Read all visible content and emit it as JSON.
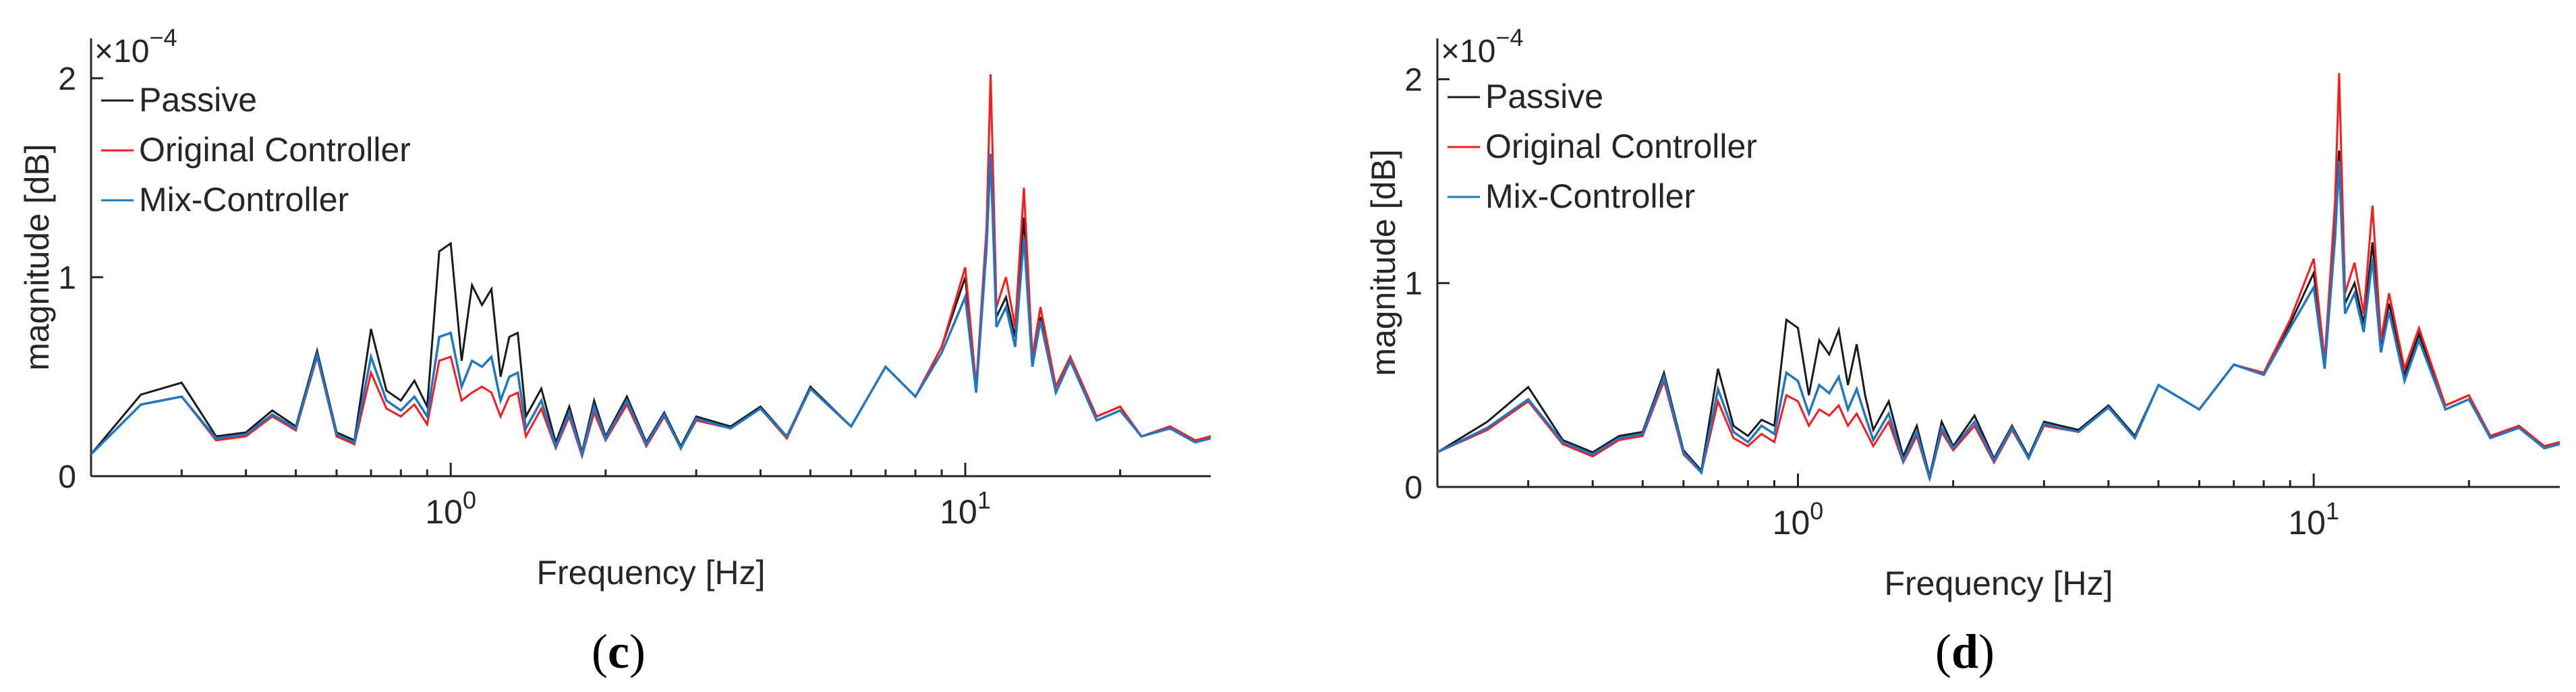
{
  "figure_captions": [
    "(c)",
    "(d)"
  ],
  "colors": {
    "passive": "#1a1a1a",
    "original": "#ff1a1a",
    "mix": "#1f77c4",
    "axis": "#262626"
  },
  "chart_data": [
    {
      "panel": "c",
      "type": "line",
      "title": "",
      "xlabel": "Frequency [Hz]",
      "ylabel": "magnitude [dB]",
      "xscale": "log",
      "xlim": [
        0.2,
        30
      ],
      "ylim": [
        0,
        2.2
      ],
      "y_exponent_label": "×10",
      "y_exponent_power": "−4",
      "xtick_labels": [
        {
          "value": 1,
          "base": "10",
          "exp": "0"
        },
        {
          "value": 10,
          "base": "10",
          "exp": "1"
        }
      ],
      "ytick_labels": [
        {
          "value": 0,
          "label": "0"
        },
        {
          "value": 1,
          "label": "1"
        },
        {
          "value": 2,
          "label": "2"
        }
      ],
      "legend_position": "top-left",
      "series": [
        {
          "name": "Passive",
          "color_key": "passive",
          "x": [
            0.2,
            0.25,
            0.3,
            0.35,
            0.4,
            0.45,
            0.5,
            0.55,
            0.6,
            0.65,
            0.7,
            0.75,
            0.8,
            0.85,
            0.9,
            0.95,
            1.0,
            1.05,
            1.1,
            1.15,
            1.2,
            1.25,
            1.3,
            1.35,
            1.4,
            1.5,
            1.6,
            1.7,
            1.8,
            1.9,
            2.0,
            2.2,
            2.4,
            2.6,
            2.8,
            3.0,
            3.5,
            4.0,
            4.5,
            5.0,
            6.0,
            7.0,
            8.0,
            9.0,
            10.0,
            10.5,
            11.0,
            11.2,
            11.5,
            12.0,
            12.5,
            13.0,
            13.5,
            14.0,
            15.0,
            16.0,
            18.0,
            20.0,
            22.0,
            25.0,
            28.0,
            30.0
          ],
          "y": [
            0.11,
            0.41,
            0.47,
            0.2,
            0.22,
            0.33,
            0.25,
            0.63,
            0.22,
            0.18,
            0.74,
            0.43,
            0.38,
            0.48,
            0.35,
            1.13,
            1.17,
            0.58,
            0.96,
            0.86,
            0.94,
            0.5,
            0.7,
            0.72,
            0.3,
            0.44,
            0.17,
            0.35,
            0.12,
            0.38,
            0.2,
            0.4,
            0.17,
            0.32,
            0.15,
            0.3,
            0.25,
            0.35,
            0.2,
            0.45,
            0.25,
            0.55,
            0.4,
            0.65,
            1.0,
            0.45,
            1.2,
            1.6,
            0.8,
            0.9,
            0.7,
            1.3,
            0.6,
            0.8,
            0.45,
            0.6,
            0.3,
            0.35,
            0.2,
            0.25,
            0.18,
            0.2
          ]
        },
        {
          "name": "Original Controller",
          "color_key": "original",
          "x": [
            0.2,
            0.25,
            0.3,
            0.35,
            0.4,
            0.45,
            0.5,
            0.55,
            0.6,
            0.65,
            0.7,
            0.75,
            0.8,
            0.85,
            0.9,
            0.95,
            1.0,
            1.05,
            1.1,
            1.15,
            1.2,
            1.25,
            1.3,
            1.35,
            1.4,
            1.5,
            1.6,
            1.7,
            1.8,
            1.9,
            2.0,
            2.2,
            2.4,
            2.6,
            2.8,
            3.0,
            3.5,
            4.0,
            4.5,
            5.0,
            6.0,
            7.0,
            8.0,
            9.0,
            10.0,
            10.5,
            11.0,
            11.2,
            11.5,
            12.0,
            12.5,
            13.0,
            13.5,
            14.0,
            15.0,
            16.0,
            18.0,
            20.0,
            22.0,
            25.0,
            28.0,
            30.0
          ],
          "y": [
            0.11,
            0.36,
            0.4,
            0.18,
            0.2,
            0.3,
            0.23,
            0.6,
            0.2,
            0.16,
            0.52,
            0.34,
            0.3,
            0.36,
            0.26,
            0.58,
            0.6,
            0.38,
            0.42,
            0.45,
            0.42,
            0.3,
            0.4,
            0.42,
            0.2,
            0.34,
            0.14,
            0.3,
            0.1,
            0.32,
            0.18,
            0.36,
            0.15,
            0.3,
            0.14,
            0.28,
            0.24,
            0.34,
            0.19,
            0.44,
            0.25,
            0.55,
            0.4,
            0.65,
            1.05,
            0.45,
            1.25,
            2.02,
            0.85,
            1.0,
            0.75,
            1.45,
            0.6,
            0.85,
            0.45,
            0.6,
            0.3,
            0.35,
            0.2,
            0.25,
            0.18,
            0.2
          ]
        },
        {
          "name": "Mix-Controller",
          "color_key": "mix",
          "x": [
            0.2,
            0.25,
            0.3,
            0.35,
            0.4,
            0.45,
            0.5,
            0.55,
            0.6,
            0.65,
            0.7,
            0.75,
            0.8,
            0.85,
            0.9,
            0.95,
            1.0,
            1.05,
            1.1,
            1.15,
            1.2,
            1.25,
            1.3,
            1.35,
            1.4,
            1.5,
            1.6,
            1.7,
            1.8,
            1.9,
            2.0,
            2.2,
            2.4,
            2.6,
            2.8,
            3.0,
            3.5,
            4.0,
            4.5,
            5.0,
            6.0,
            7.0,
            8.0,
            9.0,
            10.0,
            10.5,
            11.0,
            11.2,
            11.5,
            12.0,
            12.5,
            13.0,
            13.5,
            14.0,
            15.0,
            16.0,
            18.0,
            20.0,
            22.0,
            25.0,
            28.0,
            30.0
          ],
          "y": [
            0.11,
            0.36,
            0.4,
            0.19,
            0.21,
            0.31,
            0.24,
            0.61,
            0.21,
            0.17,
            0.6,
            0.38,
            0.33,
            0.4,
            0.3,
            0.7,
            0.72,
            0.45,
            0.58,
            0.55,
            0.6,
            0.38,
            0.5,
            0.52,
            0.24,
            0.38,
            0.15,
            0.32,
            0.11,
            0.35,
            0.19,
            0.38,
            0.16,
            0.31,
            0.14,
            0.29,
            0.24,
            0.34,
            0.2,
            0.44,
            0.25,
            0.55,
            0.4,
            0.62,
            0.9,
            0.42,
            1.15,
            1.62,
            0.75,
            0.85,
            0.65,
            1.2,
            0.55,
            0.78,
            0.42,
            0.58,
            0.28,
            0.33,
            0.2,
            0.24,
            0.17,
            0.19
          ]
        }
      ]
    },
    {
      "panel": "d",
      "type": "line",
      "title": "",
      "xlabel": "Frequency [Hz]",
      "ylabel": "magnitude [dB]",
      "xscale": "log",
      "xlim": [
        0.2,
        30
      ],
      "ylim": [
        0,
        2.2
      ],
      "y_exponent_label": "×10",
      "y_exponent_power": "−4",
      "xtick_labels": [
        {
          "value": 1,
          "base": "10",
          "exp": "0"
        },
        {
          "value": 10,
          "base": "10",
          "exp": "1"
        }
      ],
      "ytick_labels": [
        {
          "value": 0,
          "label": "0"
        },
        {
          "value": 1,
          "label": "1"
        },
        {
          "value": 2,
          "label": "2"
        }
      ],
      "legend_position": "top-left",
      "series": [
        {
          "name": "Passive",
          "color_key": "passive",
          "x": [
            0.2,
            0.25,
            0.3,
            0.35,
            0.4,
            0.45,
            0.5,
            0.55,
            0.6,
            0.65,
            0.7,
            0.75,
            0.8,
            0.85,
            0.9,
            0.95,
            1.0,
            1.05,
            1.1,
            1.15,
            1.2,
            1.25,
            1.3,
            1.35,
            1.4,
            1.5,
            1.6,
            1.7,
            1.8,
            1.9,
            2.0,
            2.2,
            2.4,
            2.6,
            2.8,
            3.0,
            3.5,
            4.0,
            4.5,
            5.0,
            6.0,
            7.0,
            8.0,
            9.0,
            10.0,
            10.5,
            11.0,
            11.2,
            11.5,
            12.0,
            12.5,
            13.0,
            13.5,
            14.0,
            15.0,
            16.0,
            18.0,
            20.0,
            22.0,
            25.0,
            28.0,
            30.0
          ],
          "y": [
            0.17,
            0.32,
            0.49,
            0.23,
            0.17,
            0.25,
            0.27,
            0.56,
            0.18,
            0.08,
            0.58,
            0.3,
            0.25,
            0.33,
            0.3,
            0.82,
            0.78,
            0.45,
            0.72,
            0.65,
            0.77,
            0.5,
            0.7,
            0.45,
            0.28,
            0.42,
            0.15,
            0.3,
            0.05,
            0.32,
            0.2,
            0.35,
            0.14,
            0.3,
            0.15,
            0.32,
            0.28,
            0.4,
            0.25,
            0.5,
            0.38,
            0.6,
            0.55,
            0.8,
            1.05,
            0.6,
            1.3,
            1.65,
            0.9,
            1.0,
            0.8,
            1.2,
            0.7,
            0.9,
            0.55,
            0.75,
            0.4,
            0.45,
            0.25,
            0.3,
            0.2,
            0.22
          ]
        },
        {
          "name": "Original Controller",
          "color_key": "original",
          "x": [
            0.2,
            0.25,
            0.3,
            0.35,
            0.4,
            0.45,
            0.5,
            0.55,
            0.6,
            0.65,
            0.7,
            0.75,
            0.8,
            0.85,
            0.9,
            0.95,
            1.0,
            1.05,
            1.1,
            1.15,
            1.2,
            1.25,
            1.3,
            1.35,
            1.4,
            1.5,
            1.6,
            1.7,
            1.8,
            1.9,
            2.0,
            2.2,
            2.4,
            2.6,
            2.8,
            3.0,
            3.5,
            4.0,
            4.5,
            5.0,
            6.0,
            7.0,
            8.0,
            9.0,
            10.0,
            10.5,
            11.0,
            11.2,
            11.5,
            12.0,
            12.5,
            13.0,
            13.5,
            14.0,
            15.0,
            16.0,
            18.0,
            20.0,
            22.0,
            25.0,
            28.0,
            30.0
          ],
          "y": [
            0.17,
            0.28,
            0.42,
            0.21,
            0.15,
            0.23,
            0.25,
            0.52,
            0.16,
            0.07,
            0.42,
            0.24,
            0.2,
            0.26,
            0.22,
            0.45,
            0.42,
            0.3,
            0.38,
            0.35,
            0.4,
            0.3,
            0.36,
            0.28,
            0.2,
            0.32,
            0.12,
            0.25,
            0.04,
            0.27,
            0.18,
            0.3,
            0.12,
            0.28,
            0.14,
            0.3,
            0.27,
            0.39,
            0.24,
            0.5,
            0.38,
            0.6,
            0.56,
            0.82,
            1.12,
            0.62,
            1.4,
            2.03,
            0.95,
            1.1,
            0.85,
            1.38,
            0.72,
            0.95,
            0.58,
            0.78,
            0.4,
            0.45,
            0.25,
            0.3,
            0.2,
            0.22
          ]
        },
        {
          "name": "Mix-Controller",
          "color_key": "mix",
          "x": [
            0.2,
            0.25,
            0.3,
            0.35,
            0.4,
            0.45,
            0.5,
            0.55,
            0.6,
            0.65,
            0.7,
            0.75,
            0.8,
            0.85,
            0.9,
            0.95,
            1.0,
            1.05,
            1.1,
            1.15,
            1.2,
            1.25,
            1.3,
            1.35,
            1.4,
            1.5,
            1.6,
            1.7,
            1.8,
            1.9,
            2.0,
            2.2,
            2.4,
            2.6,
            2.8,
            3.0,
            3.5,
            4.0,
            4.5,
            5.0,
            6.0,
            7.0,
            8.0,
            9.0,
            10.0,
            10.5,
            11.0,
            11.2,
            11.5,
            12.0,
            12.5,
            13.0,
            13.5,
            14.0,
            15.0,
            16.0,
            18.0,
            20.0,
            22.0,
            25.0,
            28.0,
            30.0
          ],
          "y": [
            0.17,
            0.29,
            0.43,
            0.22,
            0.16,
            0.24,
            0.26,
            0.54,
            0.17,
            0.07,
            0.48,
            0.27,
            0.22,
            0.3,
            0.26,
            0.56,
            0.52,
            0.36,
            0.5,
            0.46,
            0.54,
            0.38,
            0.48,
            0.35,
            0.23,
            0.36,
            0.13,
            0.27,
            0.04,
            0.29,
            0.19,
            0.32,
            0.13,
            0.29,
            0.14,
            0.31,
            0.27,
            0.39,
            0.24,
            0.5,
            0.38,
            0.6,
            0.55,
            0.78,
            0.98,
            0.58,
            1.22,
            1.6,
            0.85,
            0.95,
            0.76,
            1.12,
            0.66,
            0.86,
            0.52,
            0.72,
            0.38,
            0.43,
            0.24,
            0.29,
            0.19,
            0.21
          ]
        }
      ]
    }
  ]
}
